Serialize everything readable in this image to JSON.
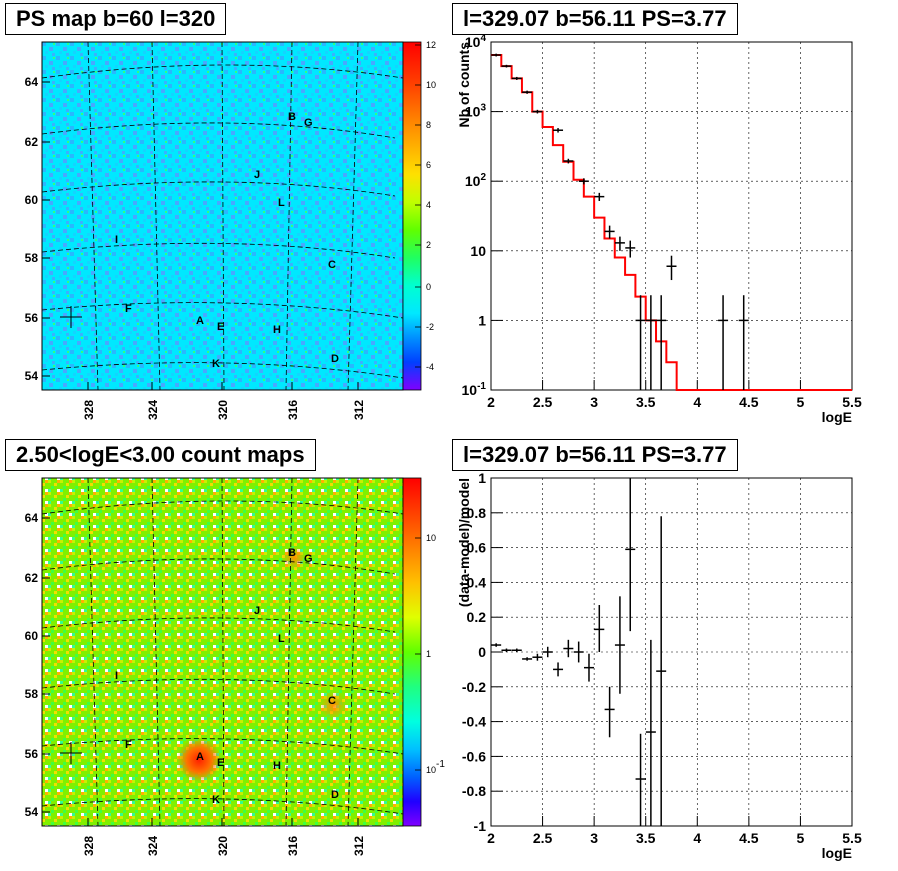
{
  "colors": {
    "ps_red": "#ff0000",
    "data_black": "#000000",
    "cyan_bg": "#00e8ff",
    "green_bg": "#7df000"
  },
  "chart_data": [
    {
      "type": "heatmap",
      "title": "PS map b=60 l=320",
      "xticks": [
        "328",
        "324",
        "320",
        "316",
        "312"
      ],
      "yticks": [
        "64",
        "62",
        "60",
        "58",
        "56",
        "54"
      ],
      "colorbar_ticks": [
        "12",
        "10",
        "8",
        "6",
        "4",
        "2",
        "0",
        "-2",
        "-4"
      ],
      "zlim": [
        -5,
        12
      ],
      "sources": [
        "B",
        "G",
        "J",
        "L",
        "I",
        "C",
        "F",
        "A",
        "E",
        "H",
        "D",
        "K"
      ]
    },
    {
      "type": "line",
      "title": "l=329.07 b=56.11 PS=3.77",
      "xlabel": "logE",
      "ylabel": "Nb of counts",
      "xlim": [
        2,
        5.5
      ],
      "ylim": [
        0.1,
        10000
      ],
      "ylog": true,
      "grid": true,
      "xticks": [
        "2",
        "2.5",
        "3",
        "3.5",
        "4",
        "4.5",
        "5",
        "5.5"
      ],
      "yticks": [
        "10^{-1}",
        "1",
        "10",
        "10^{2}",
        "10^{3}",
        "10^{4}"
      ],
      "model_step": {
        "edges": [
          2.0,
          2.1,
          2.2,
          2.3,
          2.4,
          2.5,
          2.6,
          2.7,
          2.8,
          2.9,
          3.0,
          3.1,
          3.2,
          3.3,
          3.4,
          3.5,
          3.6,
          3.7,
          3.8,
          3.9,
          4.0,
          4.1,
          4.2,
          4.3,
          4.4,
          4.5,
          4.6,
          4.7,
          4.8,
          4.9,
          5.0,
          5.1,
          5.2,
          5.3,
          5.4,
          5.5
        ],
        "values": [
          6500,
          4500,
          3000,
          1900,
          1000,
          600,
          330,
          190,
          105,
          60,
          30,
          15,
          8,
          4.5,
          2.2,
          1,
          0.5,
          0.25,
          0.1,
          0.1,
          0.1,
          0.1,
          0.1,
          0.1,
          0.1,
          0.1,
          0.1,
          0.1,
          0.1,
          0.1,
          0.1,
          0.1,
          0.1,
          0.1,
          0.1
        ]
      },
      "data_points": [
        {
          "x": 2.05,
          "y": 6500,
          "lo": 6200,
          "hi": 6800
        },
        {
          "x": 2.15,
          "y": 4500,
          "lo": 4300,
          "hi": 4700
        },
        {
          "x": 2.25,
          "y": 3000,
          "lo": 2850,
          "hi": 3150
        },
        {
          "x": 2.35,
          "y": 1900,
          "lo": 1800,
          "hi": 2000
        },
        {
          "x": 2.45,
          "y": 1000,
          "lo": 940,
          "hi": 1060
        },
        {
          "x": 2.65,
          "y": 540,
          "lo": 500,
          "hi": 580
        },
        {
          "x": 2.75,
          "y": 195,
          "lo": 180,
          "hi": 210
        },
        {
          "x": 2.9,
          "y": 100,
          "lo": 90,
          "hi": 110
        },
        {
          "x": 3.05,
          "y": 60,
          "lo": 52,
          "hi": 68
        },
        {
          "x": 3.15,
          "y": 19,
          "lo": 15,
          "hi": 23
        },
        {
          "x": 3.25,
          "y": 13,
          "lo": 10,
          "hi": 16
        },
        {
          "x": 3.35,
          "y": 11,
          "lo": 8,
          "hi": 14
        },
        {
          "x": 3.45,
          "y": 1,
          "lo": 0.1,
          "hi": 2.3
        },
        {
          "x": 3.55,
          "y": 1,
          "lo": 0.1,
          "hi": 2.3
        },
        {
          "x": 3.65,
          "y": 1,
          "lo": 0.1,
          "hi": 2.3
        },
        {
          "x": 3.75,
          "y": 6,
          "lo": 3.8,
          "hi": 8.5
        },
        {
          "x": 4.25,
          "y": 1,
          "lo": 0.1,
          "hi": 2.3
        },
        {
          "x": 4.45,
          "y": 1,
          "lo": 0.1,
          "hi": 2.3
        }
      ]
    },
    {
      "type": "heatmap",
      "title": "2.50<logE<3.00 count maps",
      "xticks": [
        "328",
        "324",
        "320",
        "316",
        "312"
      ],
      "yticks": [
        "64",
        "62",
        "60",
        "58",
        "56",
        "54"
      ],
      "colorbar_ticks": [
        "10",
        "1",
        "10^{-1}"
      ],
      "zlog": true,
      "sources": [
        "B",
        "G",
        "J",
        "L",
        "I",
        "C",
        "F",
        "A",
        "E",
        "H",
        "D",
        "K"
      ]
    },
    {
      "type": "scatter",
      "title": "l=329.07 b=56.11 PS=3.77",
      "xlabel": "logE",
      "ylabel": "(data-model)/model",
      "xlim": [
        2,
        5.5
      ],
      "ylim": [
        -1,
        1
      ],
      "grid": true,
      "xticks": [
        "2",
        "2.5",
        "3",
        "3.5",
        "4",
        "4.5",
        "5",
        "5.5"
      ],
      "yticks": [
        "-1",
        "-0.8",
        "-0.6",
        "-0.4",
        "-0.2",
        "0",
        "0.2",
        "0.4",
        "0.6",
        "0.8",
        "1"
      ],
      "data_points": [
        {
          "x": 2.05,
          "y": 0.04,
          "lo": 0.03,
          "hi": 0.05
        },
        {
          "x": 2.15,
          "y": 0.01,
          "lo": 0.0,
          "hi": 0.02
        },
        {
          "x": 2.25,
          "y": 0.01,
          "lo": 0.0,
          "hi": 0.02
        },
        {
          "x": 2.35,
          "y": -0.04,
          "lo": -0.05,
          "hi": -0.03
        },
        {
          "x": 2.45,
          "y": -0.03,
          "lo": -0.05,
          "hi": -0.01
        },
        {
          "x": 2.55,
          "y": 0.0,
          "lo": -0.03,
          "hi": 0.03
        },
        {
          "x": 2.65,
          "y": -0.1,
          "lo": -0.14,
          "hi": -0.06
        },
        {
          "x": 2.75,
          "y": 0.02,
          "lo": -0.03,
          "hi": 0.07
        },
        {
          "x": 2.85,
          "y": 0.0,
          "lo": -0.06,
          "hi": 0.06
        },
        {
          "x": 2.95,
          "y": -0.09,
          "lo": -0.17,
          "hi": -0.01
        },
        {
          "x": 3.05,
          "y": 0.13,
          "lo": 0.0,
          "hi": 0.27
        },
        {
          "x": 3.15,
          "y": -0.33,
          "lo": -0.49,
          "hi": -0.2
        },
        {
          "x": 3.25,
          "y": 0.04,
          "lo": -0.24,
          "hi": 0.32
        },
        {
          "x": 3.35,
          "y": 0.59,
          "lo": 0.12,
          "hi": 1.0
        },
        {
          "x": 3.45,
          "y": -0.73,
          "lo": -1.0,
          "hi": -0.47
        },
        {
          "x": 3.55,
          "y": -0.46,
          "lo": -1.0,
          "hi": 0.07
        },
        {
          "x": 3.65,
          "y": -0.11,
          "lo": -1.0,
          "hi": 0.78
        }
      ]
    }
  ]
}
